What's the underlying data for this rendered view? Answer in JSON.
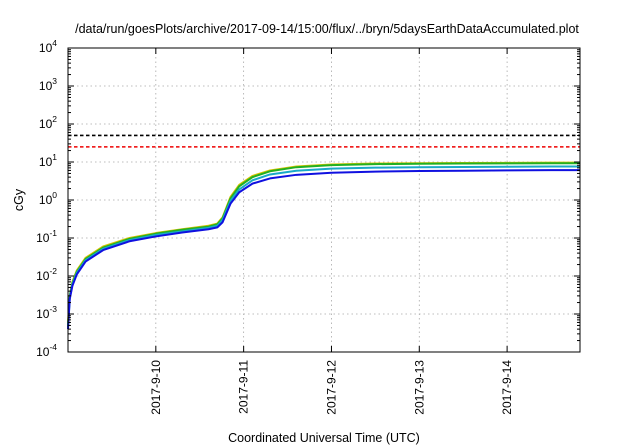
{
  "chart_data": {
    "type": "line",
    "title": "/data/run/goesPlots/archive/2017-09-14/15:00/flux/../bryn/5daysEarthDataAccumulated.plot",
    "xlabel": "Coordinated Universal Time (UTC)",
    "ylabel": "cGy",
    "yscale": "log",
    "ylim": [
      0.0001,
      10000
    ],
    "xlim": [
      0,
      5.83
    ],
    "x_tick_labels": [
      "2017-9-10",
      "2017-9-11",
      "2017-9-12",
      "2017-9-13",
      "2017-9-14"
    ],
    "x_tick_positions": [
      1,
      2,
      3,
      4,
      5
    ],
    "y_tick_labels": [
      {
        "base": "10",
        "exp": "-4"
      },
      {
        "base": "10",
        "exp": "-3"
      },
      {
        "base": "10",
        "exp": "-2"
      },
      {
        "base": "10",
        "exp": "-1"
      },
      {
        "base": "10",
        "exp": "0"
      },
      {
        "base": "10",
        "exp": "1"
      },
      {
        "base": "10",
        "exp": "2"
      },
      {
        "base": "10",
        "exp": "3"
      },
      {
        "base": "10",
        "exp": "4"
      }
    ],
    "grid": true,
    "series": [
      {
        "color": "#d8c400",
        "values": [
          [
            0.0,
            0.0006
          ],
          [
            0.02,
            0.003
          ],
          [
            0.05,
            0.007
          ],
          [
            0.1,
            0.014
          ],
          [
            0.2,
            0.03
          ],
          [
            0.4,
            0.06
          ],
          [
            0.7,
            0.1
          ],
          [
            1.0,
            0.135
          ],
          [
            1.3,
            0.17
          ],
          [
            1.6,
            0.21
          ],
          [
            1.7,
            0.24
          ],
          [
            1.76,
            0.35
          ],
          [
            1.85,
            1.2
          ],
          [
            1.95,
            2.5
          ],
          [
            2.1,
            4.3
          ],
          [
            2.3,
            6.0
          ],
          [
            2.6,
            7.6
          ],
          [
            3.0,
            8.6
          ],
          [
            3.5,
            9.1
          ],
          [
            4.0,
            9.3
          ],
          [
            4.5,
            9.4
          ],
          [
            5.0,
            9.5
          ],
          [
            5.5,
            9.6
          ],
          [
            5.83,
            9.6
          ]
        ]
      },
      {
        "color": "#22b022",
        "values": [
          [
            0.0,
            0.0005
          ],
          [
            0.02,
            0.003
          ],
          [
            0.05,
            0.0065
          ],
          [
            0.1,
            0.013
          ],
          [
            0.2,
            0.028
          ],
          [
            0.4,
            0.056
          ],
          [
            0.7,
            0.095
          ],
          [
            1.0,
            0.13
          ],
          [
            1.3,
            0.165
          ],
          [
            1.6,
            0.2
          ],
          [
            1.7,
            0.23
          ],
          [
            1.76,
            0.33
          ],
          [
            1.85,
            1.1
          ],
          [
            1.95,
            2.3
          ],
          [
            2.1,
            4.0
          ],
          [
            2.3,
            5.7
          ],
          [
            2.6,
            7.3
          ],
          [
            3.0,
            8.3
          ],
          [
            3.5,
            8.8
          ],
          [
            4.0,
            9.0
          ],
          [
            4.5,
            9.1
          ],
          [
            5.0,
            9.2
          ],
          [
            5.5,
            9.3
          ],
          [
            5.83,
            9.3
          ]
        ]
      },
      {
        "color": "#19a9c8",
        "values": [
          [
            0.0,
            0.00045
          ],
          [
            0.02,
            0.0027
          ],
          [
            0.05,
            0.006
          ],
          [
            0.1,
            0.012
          ],
          [
            0.2,
            0.026
          ],
          [
            0.4,
            0.052
          ],
          [
            0.7,
            0.088
          ],
          [
            1.0,
            0.12
          ],
          [
            1.3,
            0.15
          ],
          [
            1.6,
            0.185
          ],
          [
            1.7,
            0.21
          ],
          [
            1.76,
            0.3
          ],
          [
            1.85,
            0.95
          ],
          [
            1.95,
            1.9
          ],
          [
            2.1,
            3.3
          ],
          [
            2.3,
            4.7
          ],
          [
            2.6,
            5.9
          ],
          [
            3.0,
            6.7
          ],
          [
            3.5,
            7.1
          ],
          [
            4.0,
            7.3
          ],
          [
            4.5,
            7.4
          ],
          [
            5.0,
            7.5
          ],
          [
            5.5,
            7.6
          ],
          [
            5.83,
            7.6
          ]
        ]
      },
      {
        "color": "#1010e0",
        "values": [
          [
            0.0,
            0.0004
          ],
          [
            0.02,
            0.0025
          ],
          [
            0.05,
            0.0055
          ],
          [
            0.1,
            0.011
          ],
          [
            0.2,
            0.024
          ],
          [
            0.4,
            0.048
          ],
          [
            0.7,
            0.082
          ],
          [
            1.0,
            0.11
          ],
          [
            1.3,
            0.14
          ],
          [
            1.6,
            0.17
          ],
          [
            1.7,
            0.19
          ],
          [
            1.76,
            0.26
          ],
          [
            1.85,
            0.8
          ],
          [
            1.95,
            1.6
          ],
          [
            2.1,
            2.7
          ],
          [
            2.3,
            3.7
          ],
          [
            2.6,
            4.6
          ],
          [
            3.0,
            5.2
          ],
          [
            3.5,
            5.6
          ],
          [
            4.0,
            5.8
          ],
          [
            4.5,
            5.9
          ],
          [
            5.0,
            6.0
          ],
          [
            5.5,
            6.1
          ],
          [
            5.83,
            6.1
          ]
        ]
      }
    ],
    "reference_lines": [
      {
        "value": 50,
        "color": "#000000",
        "style": "dashed"
      },
      {
        "value": 25,
        "color": "#ee0000",
        "style": "dashed"
      }
    ]
  }
}
